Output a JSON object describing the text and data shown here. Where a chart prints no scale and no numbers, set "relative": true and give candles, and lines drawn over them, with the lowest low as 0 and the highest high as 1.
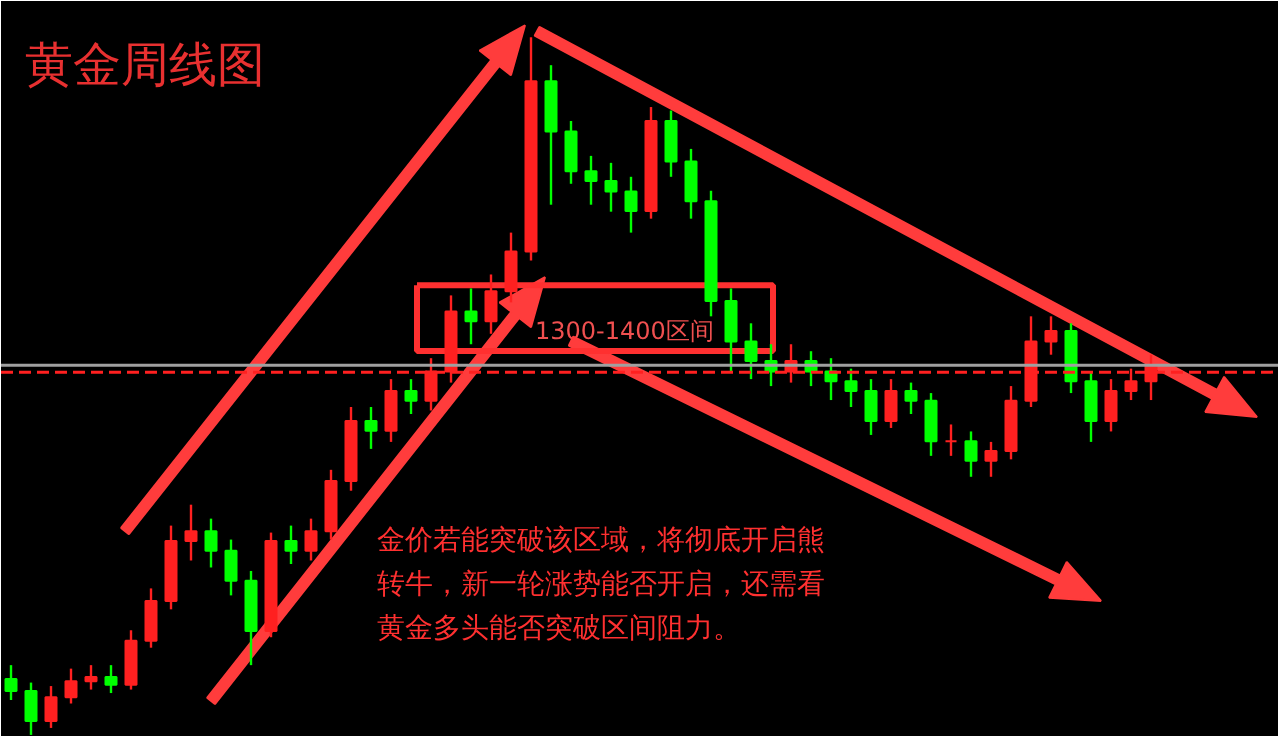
{
  "chart_data": {
    "type": "candlestick",
    "relative": true,
    "title": "黄金周线图",
    "annotations": [
      "1300-1400区间",
      "金价若能突破该区域，将彻底开启熊转牛，新一轮涨势能否开启，还需看黄金多头能否突破区间阻力。"
    ],
    "categories": [
      null,
      null,
      null,
      null,
      null,
      null,
      null,
      null,
      null,
      null,
      null,
      null,
      null,
      null,
      null,
      null,
      null,
      null,
      null,
      null,
      null,
      null,
      null,
      null,
      null,
      null,
      null,
      null,
      null,
      null,
      null,
      null,
      null,
      null,
      null,
      null,
      null,
      null,
      null,
      null,
      null,
      null,
      null,
      null,
      null,
      null,
      null,
      null,
      null,
      null,
      null,
      null,
      null,
      null,
      null,
      null,
      null,
      null
    ],
    "ohlc": [
      [
        0.08,
        0.1,
        0.05,
        0.063
      ],
      [
        0.063,
        0.075,
        0.0,
        0.02
      ],
      [
        0.02,
        0.07,
        0.01,
        0.054
      ],
      [
        0.054,
        0.095,
        0.045,
        0.077
      ],
      [
        0.077,
        0.1,
        0.065,
        0.083
      ],
      [
        0.083,
        0.1,
        0.06,
        0.072
      ],
      [
        0.072,
        0.15,
        0.065,
        0.135
      ],
      [
        0.135,
        0.21,
        0.125,
        0.192
      ],
      [
        0.192,
        0.3,
        0.18,
        0.278
      ],
      [
        0.278,
        0.33,
        0.25,
        0.292
      ],
      [
        0.292,
        0.31,
        0.24,
        0.264
      ],
      [
        0.264,
        0.28,
        0.2,
        0.221
      ],
      [
        0.221,
        0.235,
        0.1,
        0.149
      ],
      [
        0.149,
        0.29,
        0.14,
        0.278
      ],
      [
        0.278,
        0.3,
        0.245,
        0.264
      ],
      [
        0.264,
        0.31,
        0.25,
        0.292
      ],
      [
        0.292,
        0.38,
        0.28,
        0.364
      ],
      [
        0.364,
        0.47,
        0.35,
        0.45
      ],
      [
        0.45,
        0.47,
        0.41,
        0.436
      ],
      [
        0.436,
        0.51,
        0.42,
        0.493
      ],
      [
        0.493,
        0.51,
        0.46,
        0.479
      ],
      [
        0.479,
        0.54,
        0.465,
        0.521
      ],
      [
        0.521,
        0.63,
        0.505,
        0.607
      ],
      [
        0.607,
        0.64,
        0.56,
        0.593
      ],
      [
        0.593,
        0.66,
        0.575,
        0.636
      ],
      [
        0.636,
        0.72,
        0.62,
        0.693
      ],
      [
        0.693,
        1.0,
        0.68,
        0.937
      ],
      [
        0.937,
        0.96,
        0.76,
        0.865
      ],
      [
        0.865,
        0.88,
        0.79,
        0.808
      ],
      [
        0.808,
        0.83,
        0.76,
        0.794
      ],
      [
        0.794,
        0.82,
        0.75,
        0.779
      ],
      [
        0.779,
        0.8,
        0.72,
        0.751
      ],
      [
        0.751,
        0.9,
        0.74,
        0.88
      ],
      [
        0.88,
        0.895,
        0.8,
        0.822
      ],
      [
        0.822,
        0.84,
        0.74,
        0.765
      ],
      [
        0.765,
        0.78,
        0.6,
        0.622
      ],
      [
        0.622,
        0.64,
        0.52,
        0.564
      ],
      [
        0.564,
        0.59,
        0.51,
        0.536
      ],
      [
        0.536,
        0.56,
        0.5,
        0.521
      ],
      [
        0.521,
        0.56,
        0.505,
        0.536
      ],
      [
        0.536,
        0.55,
        0.5,
        0.521
      ],
      [
        0.521,
        0.54,
        0.48,
        0.507
      ],
      [
        0.507,
        0.525,
        0.47,
        0.493
      ],
      [
        0.493,
        0.51,
        0.43,
        0.45
      ],
      [
        0.45,
        0.51,
        0.44,
        0.493
      ],
      [
        0.493,
        0.505,
        0.46,
        0.479
      ],
      [
        0.479,
        0.49,
        0.4,
        0.421
      ],
      [
        0.421,
        0.445,
        0.4,
        0.421
      ],
      [
        0.421,
        0.435,
        0.37,
        0.393
      ],
      [
        0.393,
        0.42,
        0.37,
        0.407
      ],
      [
        0.407,
        0.5,
        0.395,
        0.479
      ],
      [
        0.479,
        0.6,
        0.47,
        0.564
      ],
      [
        0.564,
        0.6,
        0.545,
        0.579
      ],
      [
        0.579,
        0.59,
        0.49,
        0.507
      ],
      [
        0.507,
        0.52,
        0.42,
        0.45
      ],
      [
        0.45,
        0.51,
        0.435,
        0.493
      ],
      [
        0.493,
        0.525,
        0.48,
        0.507
      ],
      [
        0.507,
        0.545,
        0.48,
        0.53
      ]
    ],
    "colors": [
      "#00ff00",
      "#00ff00",
      "#ff2020",
      "#ff2020",
      "#ff2020",
      "#00ff00",
      "#ff2020",
      "#ff2020",
      "#ff2020",
      "#ff2020",
      "#00ff00",
      "#00ff00",
      "#00ff00",
      "#ff2020",
      "#00ff00",
      "#ff2020",
      "#ff2020",
      "#ff2020",
      "#00ff00",
      "#ff2020",
      "#00ff00",
      "#ff2020",
      "#ff2020",
      "#00ff00",
      "#ff2020",
      "#ff2020",
      "#ff2020",
      "#00ff00",
      "#00ff00",
      "#00ff00",
      "#00ff00",
      "#00ff00",
      "#ff2020",
      "#00ff00",
      "#00ff00",
      "#00ff00",
      "#00ff00",
      "#00ff00",
      "#00ff00",
      "#ff2020",
      "#00ff00",
      "#00ff00",
      "#00ff00",
      "#00ff00",
      "#ff2020",
      "#00ff00",
      "#00ff00",
      "#ff2020",
      "#00ff00",
      "#ff2020",
      "#ff2020",
      "#ff2020",
      "#ff2020",
      "#00ff00",
      "#00ff00",
      "#ff2020",
      "#ff2020",
      "#ff2020"
    ],
    "ref_lines": [
      {
        "axis": "y",
        "value": 0.53,
        "color": "#a0a0a0",
        "line_style": "solid"
      },
      {
        "axis": "y",
        "value": 0.52,
        "color": "#ff2020",
        "line_style": "dashed"
      }
    ],
    "grid": false
  }
}
